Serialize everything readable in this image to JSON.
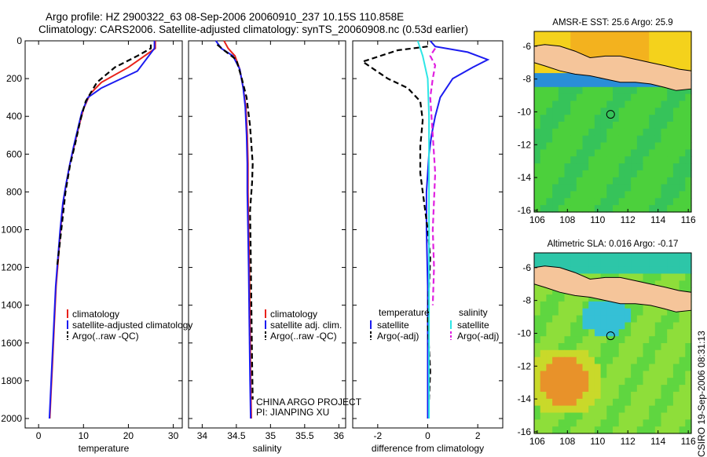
{
  "title": {
    "line1": "Argo profile: HZ 2900322_63 08-Sep-2006 20060910_237 10.15S 110.858E",
    "line2": "Climatology: CARS2006. Satellite-adjusted climatology: synTS_20060908.nc (0.53d earlier)"
  },
  "credit": "CSIRO 19-Sep-2006 08:31:13",
  "colors": {
    "climatology": "#e8221b",
    "satellite": "#1c1cf0",
    "argo": "#000000",
    "diff_sat_salinity": "#2ee6e6",
    "diff_argo_salinity": "#e020e0",
    "land": "#f5c59a"
  },
  "chart_data": [
    {
      "id": "temperature",
      "type": "line",
      "xlabel": "temperature",
      "xlim": [
        -3,
        32
      ],
      "xticks": [
        0,
        10,
        20,
        30
      ],
      "ylim": [
        0,
        2050
      ],
      "yticks": [
        0,
        200,
        400,
        600,
        800,
        1000,
        1200,
        1400,
        1600,
        1800,
        2000
      ],
      "y_reversed": true,
      "legend": {
        "placement": "lower-center",
        "entries": [
          "climatology",
          "satellite-adjusted climatology",
          "Argo(..raw -QC)"
        ]
      },
      "series": [
        {
          "name": "climatology",
          "style": "solid",
          "x": [
            26.0,
            26.0,
            20.0,
            14.0,
            11.5,
            10.0,
            9.0,
            8.0,
            7.0,
            6.2,
            5.5,
            4.9,
            4.4,
            3.9,
            3.5,
            3.1,
            2.8,
            2.5
          ],
          "y": [
            0,
            40,
            140,
            220,
            280,
            360,
            450,
            550,
            650,
            750,
            850,
            1000,
            1150,
            1300,
            1500,
            1700,
            1850,
            2000
          ]
        },
        {
          "name": "satellite-adjusted climatology",
          "style": "solid",
          "x": [
            25.8,
            25.8,
            22.0,
            14.0,
            11.0,
            9.6,
            8.8,
            7.8,
            6.9,
            6.1,
            5.4,
            4.8,
            4.3,
            3.8,
            3.4,
            3.0,
            2.7,
            2.4
          ],
          "y": [
            0,
            40,
            160,
            250,
            300,
            380,
            460,
            560,
            660,
            760,
            860,
            1000,
            1150,
            1300,
            1500,
            1700,
            1850,
            2000
          ]
        },
        {
          "name": "Argo(..raw -QC)",
          "style": "dashed",
          "x": [
            25.0,
            25.0,
            22.0,
            17.0,
            13.0,
            10.5,
            9.3,
            8.2,
            7.0,
            6.0,
            5.3,
            4.6,
            4.1
          ],
          "y": [
            20,
            40,
            80,
            140,
            220,
            320,
            420,
            540,
            660,
            800,
            950,
            1100,
            1200
          ]
        }
      ]
    },
    {
      "id": "salinity",
      "type": "line",
      "xlabel": "salinity",
      "xlim": [
        33.8,
        36.1
      ],
      "xticks": [
        34,
        34.5,
        35,
        35.5,
        36
      ],
      "ylim": [
        0,
        2050
      ],
      "y_reversed": true,
      "legend": {
        "placement": "lower-center",
        "entries": [
          "climatology",
          "satellite adj. clim.",
          "Argo(..raw -QC)"
        ]
      },
      "annotation": [
        "CHINA ARGO PROJECT",
        "PI: JIANPING XU"
      ],
      "series": [
        {
          "name": "climatology",
          "style": "solid",
          "x": [
            34.32,
            34.38,
            34.48,
            34.55,
            34.6,
            34.64,
            34.66,
            34.67,
            34.67,
            34.68,
            34.69,
            34.7,
            34.71,
            34.72
          ],
          "y": [
            0,
            40,
            80,
            150,
            250,
            350,
            500,
            650,
            800,
            1000,
            1200,
            1500,
            1800,
            2000
          ]
        },
        {
          "name": "satellite adj. clim.",
          "style": "solid",
          "x": [
            34.2,
            34.28,
            34.45,
            34.55,
            34.6,
            34.63,
            34.65,
            34.66,
            34.66,
            34.67,
            34.68,
            34.69,
            34.7,
            34.71
          ],
          "y": [
            0,
            40,
            80,
            150,
            250,
            350,
            500,
            650,
            800,
            1000,
            1200,
            1500,
            1800,
            2000
          ]
        },
        {
          "name": "Argo(..raw -QC)",
          "style": "dashed",
          "x": [
            34.22,
            34.32,
            34.5,
            34.58,
            34.65,
            34.7,
            34.72,
            34.74,
            34.73,
            34.7,
            34.71,
            34.72,
            34.73,
            34.74
          ],
          "y": [
            20,
            50,
            100,
            200,
            300,
            450,
            550,
            650,
            750,
            900,
            1100,
            1400,
            1700,
            1900
          ]
        }
      ]
    },
    {
      "id": "difference",
      "type": "line",
      "xlabel": "difference from climatology",
      "xlim": [
        -3,
        3
      ],
      "xticks": [
        -2,
        0,
        2
      ],
      "ylim": [
        0,
        2050
      ],
      "y_reversed": true,
      "legend": {
        "placement": "lower-center",
        "left_header": "temperature",
        "right_header": "salinity",
        "entries": [
          "satellite",
          "Argo(-adj)",
          "satellite",
          "Argo(-adj)"
        ]
      },
      "series": [
        {
          "name": "temperature satellite",
          "style": "solid",
          "x": [
            0.1,
            0.3,
            1.6,
            2.4,
            1.8,
            1.0,
            0.5,
            0.3,
            0.15,
            0.05,
            0.0,
            -0.05,
            -0.05,
            0.0,
            0.0,
            0.0
          ],
          "y": [
            0,
            30,
            60,
            100,
            140,
            200,
            300,
            400,
            500,
            600,
            700,
            800,
            1000,
            1300,
            1600,
            2000
          ]
        },
        {
          "name": "temperature Argo(-adj)",
          "style": "dashed",
          "x": [
            0.0,
            -1.2,
            -2.6,
            -1.6,
            -0.8,
            -0.3,
            -0.2,
            -0.3,
            -0.3,
            -0.2,
            -0.1,
            0.0,
            0.1,
            0.05,
            0.0,
            0.1,
            0.05
          ],
          "y": [
            30,
            50,
            110,
            200,
            250,
            320,
            420,
            560,
            700,
            800,
            900,
            1000,
            1150,
            1300,
            1500,
            1750,
            1900
          ]
        },
        {
          "name": "salinity satellite",
          "style": "solid",
          "x": [
            -0.4,
            -0.2,
            0.0,
            0.05,
            0.05,
            0.05,
            0.05,
            0.05,
            0.05,
            0.05
          ],
          "y": [
            0,
            80,
            200,
            400,
            600,
            800,
            1000,
            1300,
            1600,
            2000
          ]
        },
        {
          "name": "salinity Argo(-adj)",
          "style": "dashed",
          "x": [
            0.3,
            0.1,
            0.3,
            0.2,
            0.1,
            0.2,
            0.3,
            0.2,
            0.25,
            0.2
          ],
          "y": [
            40,
            80,
            130,
            200,
            300,
            500,
            700,
            1000,
            1200,
            1400
          ]
        }
      ]
    },
    {
      "id": "sst_map",
      "type": "heatmap",
      "title": "AMSR-E SST: 25.6 Argo: 25.9",
      "xlim": [
        105.8,
        116.2
      ],
      "xticks": [
        106,
        108,
        110,
        112,
        114,
        116
      ],
      "ylim": [
        -16.1,
        -5.1
      ],
      "yticks": [
        -6,
        -8,
        -10,
        -12,
        -14,
        -16
      ],
      "marker": {
        "lon": 110.858,
        "lat": -10.15
      }
    },
    {
      "id": "sla_map",
      "type": "heatmap",
      "title": "Altimetric SLA: 0.016 Argo: -0.17",
      "xlim": [
        105.8,
        116.2
      ],
      "xticks": [
        106,
        108,
        110,
        112,
        114,
        116
      ],
      "ylim": [
        -16.1,
        -5.1
      ],
      "yticks": [
        -6,
        -8,
        -10,
        -12,
        -14,
        -16
      ],
      "marker": {
        "lon": 110.858,
        "lat": -10.15
      }
    }
  ]
}
